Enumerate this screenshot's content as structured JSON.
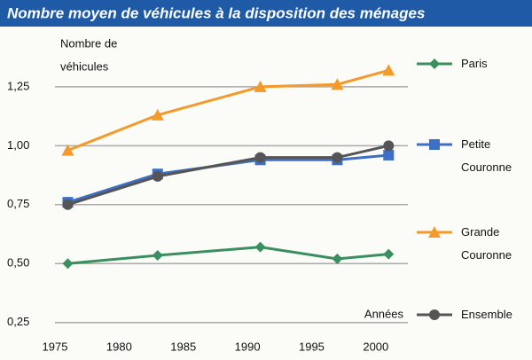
{
  "chart_data": {
    "type": "line",
    "title": "Nombre moyen de véhicules à la disposition des ménages",
    "ylabel": [
      "Nombre de",
      "véhicules"
    ],
    "xlabel": "Années",
    "x": [
      1976,
      1983,
      1991,
      1997,
      2001
    ],
    "xlim": [
      1975,
      2002.5
    ],
    "xticks": [
      1975,
      1980,
      1985,
      1990,
      1995,
      2000
    ],
    "ylim": [
      0.2,
      1.4
    ],
    "yticks": [
      {
        "value": 0.25,
        "label": "0,25"
      },
      {
        "value": 0.5,
        "label": "0,50"
      },
      {
        "value": 0.75,
        "label": "0,75"
      },
      {
        "value": 1.0,
        "label": "1,00"
      },
      {
        "value": 1.25,
        "label": "1,25"
      }
    ],
    "grid": true,
    "legend": "right",
    "series": [
      {
        "name": "Paris",
        "color": "#3a8f5f",
        "marker": "diamond",
        "values": [
          0.5,
          0.535,
          0.57,
          0.52,
          0.54
        ]
      },
      {
        "name": "Petite Couronne",
        "color": "#3d6fc7",
        "marker": "square",
        "values": [
          0.76,
          0.88,
          0.94,
          0.94,
          0.96
        ]
      },
      {
        "name": "Grande Couronne",
        "color": "#f39a2b",
        "marker": "triangle",
        "values": [
          0.98,
          1.13,
          1.25,
          1.26,
          1.32
        ]
      },
      {
        "name": "Ensemble",
        "color": "#555555",
        "marker": "circle",
        "values": [
          0.75,
          0.87,
          0.95,
          0.95,
          1.0
        ]
      }
    ]
  }
}
